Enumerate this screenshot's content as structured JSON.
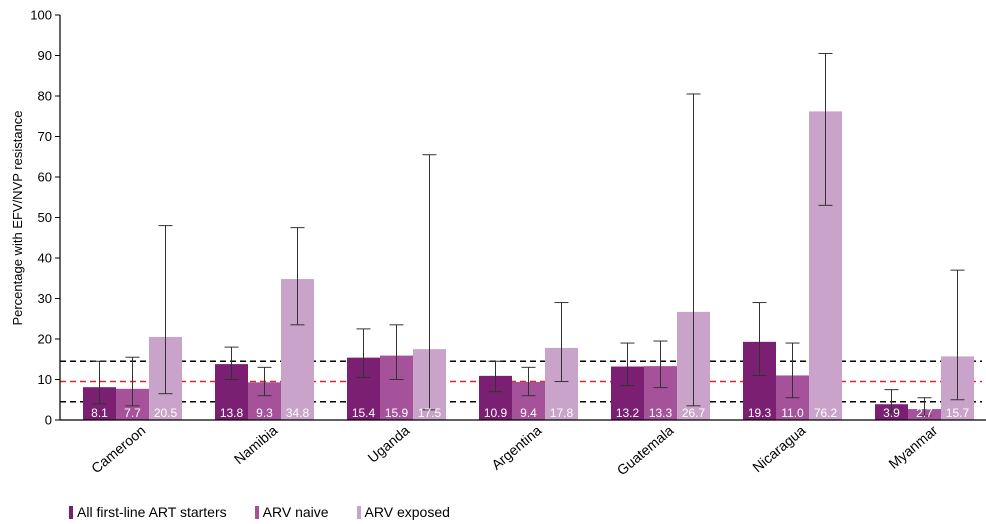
{
  "chart_data": {
    "type": "bar",
    "title": "",
    "xlabel": "",
    "ylabel": "Percentage with EFV/NVP resistance",
    "ylim": [
      0,
      100
    ],
    "yticks": [
      0,
      10,
      20,
      30,
      40,
      50,
      60,
      70,
      80,
      90,
      100
    ],
    "categories": [
      "Cameroon",
      "Namibia",
      "Uganda",
      "Argentina",
      "Guatemala",
      "Nicaragua",
      "Myanmar"
    ],
    "series": [
      {
        "name": "All first-line ART starters",
        "color": "#7b1f73",
        "values": [
          8.1,
          13.8,
          15.4,
          10.9,
          13.2,
          19.3,
          3.9
        ],
        "ci_low": [
          4.0,
          10.0,
          10.5,
          7.0,
          8.5,
          11.0,
          2.0
        ],
        "ci_high": [
          14.5,
          18.0,
          22.5,
          14.5,
          19.0,
          29.0,
          7.5
        ]
      },
      {
        "name": "ARV naive",
        "color": "#a5529b",
        "values": [
          7.7,
          9.3,
          15.9,
          9.4,
          13.3,
          11.0,
          2.7
        ],
        "ci_low": [
          3.5,
          6.0,
          10.0,
          6.0,
          8.0,
          5.5,
          1.0
        ],
        "ci_high": [
          15.5,
          13.0,
          23.5,
          13.0,
          19.5,
          19.0,
          5.5
        ]
      },
      {
        "name": "ARV exposed",
        "color": "#c9a3c9",
        "values": [
          20.5,
          34.8,
          17.5,
          17.8,
          26.7,
          76.2,
          15.7
        ],
        "ci_low": [
          6.5,
          23.5,
          2.5,
          9.5,
          3.5,
          53.0,
          5.0
        ],
        "ci_high": [
          48.0,
          47.5,
          65.5,
          29.0,
          80.5,
          90.5,
          37.0
        ]
      }
    ],
    "data_labels": [
      [
        "8.1",
        "7.7",
        "20.5"
      ],
      [
        "13.8",
        "9.3",
        "34.8"
      ],
      [
        "15.4",
        "15.9",
        "17.5"
      ],
      [
        "10.9",
        "9.4",
        "17.8"
      ],
      [
        "13.2",
        "13.3",
        "26.7"
      ],
      [
        "19.3",
        "11.0",
        "76.2"
      ],
      [
        "3.9",
        "2.7",
        "15.7"
      ]
    ],
    "reference_lines": [
      {
        "value": 9.5,
        "color": "#e0262b",
        "style": "dashed"
      },
      {
        "value": 4.5,
        "color": "#000000",
        "style": "dashed"
      },
      {
        "value": 14.5,
        "color": "#000000",
        "style": "dashed"
      }
    ],
    "grid": false,
    "legend_position": "bottom-left"
  }
}
